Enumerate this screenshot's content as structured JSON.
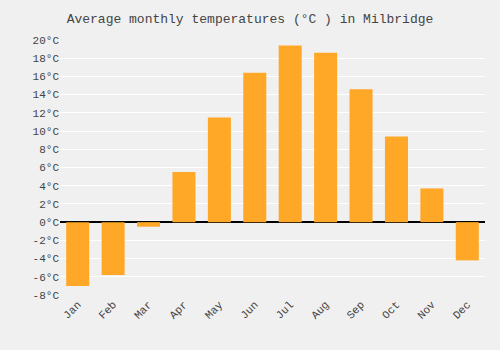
{
  "chart_data": {
    "type": "bar",
    "title": "Average monthly temperatures (°C ) in Milbridge",
    "categories": [
      "Jan",
      "Feb",
      "Mar",
      "Apr",
      "May",
      "Jun",
      "Jul",
      "Aug",
      "Sep",
      "Oct",
      "Nov",
      "Dec"
    ],
    "values": [
      -7.0,
      -5.8,
      -0.5,
      5.5,
      11.5,
      16.4,
      19.4,
      18.6,
      14.6,
      9.4,
      3.7,
      -4.2
    ],
    "color": "#FFA726",
    "ylim": [
      -8,
      20
    ],
    "yticks": [
      {
        "value": -8,
        "label": "-8°C"
      },
      {
        "value": -6,
        "label": "-6°C"
      },
      {
        "value": -4,
        "label": "-4°C"
      },
      {
        "value": -2,
        "label": "-2°C"
      },
      {
        "value": 0,
        "label": "0°C"
      },
      {
        "value": 2,
        "label": "2°C"
      },
      {
        "value": 4,
        "label": "4°C"
      },
      {
        "value": 6,
        "label": "6°C"
      },
      {
        "value": 8,
        "label": "8°C"
      },
      {
        "value": 10,
        "label": "10°C"
      },
      {
        "value": 12,
        "label": "12°C"
      },
      {
        "value": 14,
        "label": "14°C"
      },
      {
        "value": 16,
        "label": "16°C"
      },
      {
        "value": 18,
        "label": "18°C"
      },
      {
        "value": 20,
        "label": "20°C"
      }
    ],
    "grid": true
  }
}
